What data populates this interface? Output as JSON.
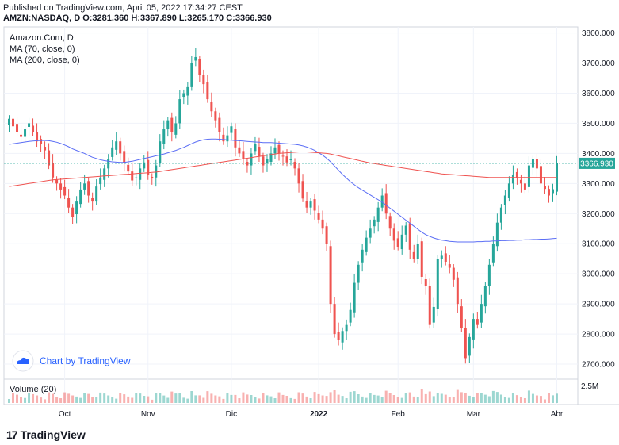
{
  "header": {
    "published": "Published on TradingView.com, April 05, 2022 17:34:27 CEST",
    "symbol_line": "AMZN:NASDAQ, D  O:3281.360 H:3367.890 L:3265.170 C:3366.930"
  },
  "legend": {
    "symbol": "Amazon.Com, D",
    "ma70": "MA (70, close, 0)",
    "ma200": "MA (200, close, 0)",
    "volume": "Volume (20)"
  },
  "watermark": {
    "text": "Chart by TradingView"
  },
  "footer": {
    "logo_text": "TradingView",
    "logo_mark": "17"
  },
  "colors": {
    "up": "#26a69a",
    "down": "#ef5350",
    "ma70": "#5b6ef5",
    "ma200": "#ef5350",
    "price_line": "#26a69a"
  },
  "chart_data": {
    "type": "candlestick",
    "price_axis": {
      "min": 2650,
      "max": 3820,
      "ticks": [
        2700,
        2800,
        2900,
        3000,
        3100,
        3200,
        3300,
        3400,
        3500,
        3600,
        3700,
        3800
      ],
      "tick_labels": [
        "2700.000",
        "2800.000",
        "2900.000",
        "3000.000",
        "3100.000",
        "3200.000",
        "3300.000",
        "3400.000",
        "3500.000",
        "3600.000",
        "3700.000",
        "3800.000"
      ]
    },
    "last_price": 3366.93,
    "last_price_label": "3366.930",
    "time_labels": [
      "Oct",
      "Nov",
      "Dic",
      "2022",
      "Feb",
      "Mar",
      "Abr"
    ],
    "time_label_index": [
      14,
      35,
      56,
      78,
      98,
      117,
      138
    ],
    "volume_axis_label": "2.5M",
    "closes": [
      3515,
      3490,
      3470,
      3455,
      3480,
      3500,
      3470,
      3440,
      3430,
      3410,
      3360,
      3320,
      3300,
      3280,
      3260,
      3220,
      3190,
      3240,
      3280,
      3300,
      3260,
      3240,
      3290,
      3320,
      3350,
      3380,
      3420,
      3440,
      3400,
      3370,
      3340,
      3310,
      3320,
      3350,
      3370,
      3330,
      3320,
      3360,
      3440,
      3480,
      3510,
      3470,
      3500,
      3580,
      3600,
      3620,
      3700,
      3720,
      3660,
      3630,
      3580,
      3540,
      3510,
      3470,
      3440,
      3460,
      3490,
      3420,
      3400,
      3380,
      3360,
      3400,
      3430,
      3390,
      3360,
      3380,
      3400,
      3420,
      3400,
      3390,
      3370,
      3380,
      3350,
      3300,
      3250,
      3220,
      3240,
      3210,
      3180,
      3150,
      3100,
      2900,
      2800,
      2780,
      2810,
      2830,
      2880,
      2970,
      3030,
      3080,
      3120,
      3150,
      3180,
      3220,
      3260,
      3200,
      3150,
      3110,
      3090,
      3130,
      3160,
      3080,
      3050,
      3100,
      2990,
      2960,
      2830,
      2890,
      3050,
      3060,
      3040,
      3020,
      2980,
      2900,
      2820,
      2720,
      2790,
      2850,
      2830,
      2900,
      2960,
      3030,
      3100,
      3170,
      3220,
      3260,
      3300,
      3330,
      3320,
      3300,
      3280,
      3360,
      3380,
      3350,
      3300,
      3282,
      3260,
      3281,
      3367
    ],
    "ma70": [
      3430,
      3432,
      3434,
      3436,
      3438,
      3440,
      3441,
      3442,
      3443,
      3443,
      3442,
      3440,
      3437,
      3433,
      3428,
      3422,
      3415,
      3410,
      3405,
      3400,
      3393,
      3387,
      3383,
      3379,
      3376,
      3374,
      3372,
      3371,
      3370,
      3370,
      3372,
      3374,
      3377,
      3380,
      3383,
      3386,
      3389,
      3392,
      3395,
      3398,
      3402,
      3406,
      3410,
      3415,
      3420,
      3426,
      3432,
      3438,
      3442,
      3445,
      3447,
      3448,
      3448,
      3447,
      3446,
      3445,
      3444,
      3443,
      3442,
      3441,
      3440,
      3439,
      3438,
      3437,
      3436,
      3436,
      3436,
      3435,
      3434,
      3433,
      3432,
      3431,
      3430,
      3428,
      3425,
      3421,
      3416,
      3410,
      3402,
      3394,
      3384,
      3372,
      3358,
      3344,
      3330,
      3318,
      3306,
      3296,
      3286,
      3278,
      3270,
      3262,
      3254,
      3246,
      3238,
      3228,
      3218,
      3208,
      3198,
      3188,
      3178,
      3168,
      3158,
      3148,
      3138,
      3130,
      3124,
      3119,
      3115,
      3112,
      3110,
      3108,
      3107,
      3106,
      3106,
      3106,
      3106,
      3106,
      3107,
      3107,
      3108,
      3108,
      3109,
      3109,
      3110,
      3110,
      3111,
      3111,
      3112,
      3112,
      3113,
      3113,
      3114,
      3114,
      3115,
      3115,
      3116,
      3117,
      3118
    ],
    "ma200": [
      3290,
      3292,
      3294,
      3296,
      3298,
      3300,
      3302,
      3304,
      3306,
      3308,
      3310,
      3312,
      3313,
      3314,
      3315,
      3316,
      3317,
      3318,
      3319,
      3320,
      3321,
      3322,
      3323,
      3324,
      3325,
      3326,
      3327,
      3328,
      3329,
      3330,
      3331,
      3332,
      3333,
      3334,
      3335,
      3336,
      3337,
      3338,
      3340,
      3342,
      3344,
      3346,
      3348,
      3350,
      3352,
      3354,
      3356,
      3358,
      3360,
      3362,
      3364,
      3366,
      3368,
      3370,
      3372,
      3374,
      3376,
      3378,
      3380,
      3382,
      3384,
      3386,
      3388,
      3390,
      3392,
      3394,
      3396,
      3398,
      3400,
      3401,
      3402,
      3403,
      3404,
      3405,
      3405,
      3405,
      3404,
      3403,
      3402,
      3401,
      3400,
      3398,
      3395,
      3392,
      3389,
      3386,
      3383,
      3380,
      3377,
      3374,
      3371,
      3368,
      3366,
      3364,
      3362,
      3360,
      3358,
      3356,
      3354,
      3352,
      3350,
      3348,
      3346,
      3344,
      3342,
      3340,
      3338,
      3336,
      3334,
      3332,
      3331,
      3330,
      3329,
      3328,
      3327,
      3326,
      3325,
      3324,
      3323,
      3322,
      3321,
      3320,
      3320,
      3320,
      3320,
      3320,
      3320,
      3320,
      3320,
      3320,
      3320,
      3320,
      3320,
      3320,
      3320,
      3320,
      3320,
      3320,
      3320
    ]
  }
}
